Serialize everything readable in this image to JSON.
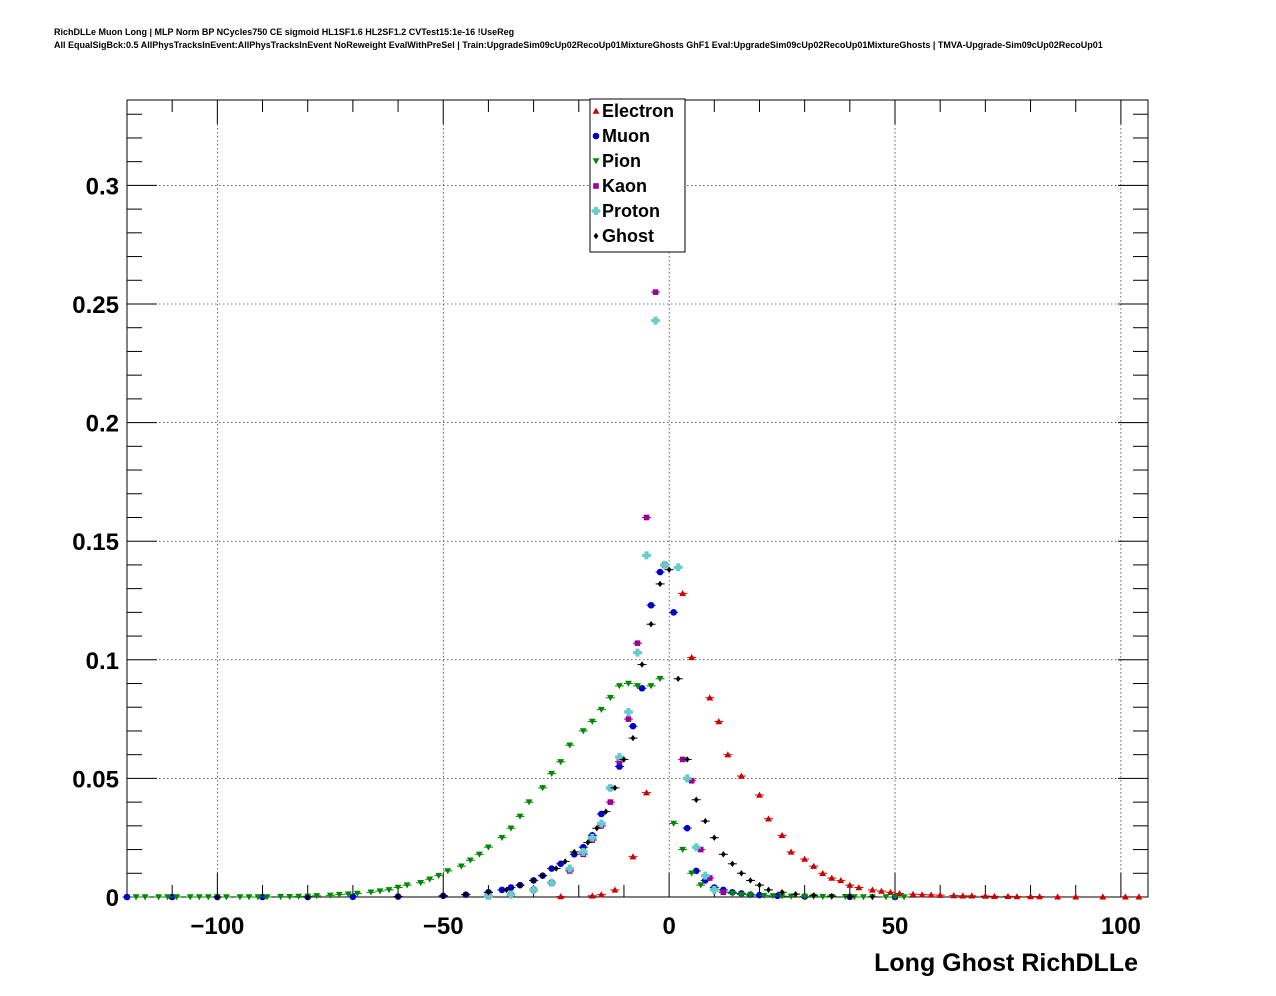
{
  "header": {
    "line1": "RichDLLe Muon Long | MLP Norm BP NCycles750 CE sigmoid HL1SF1.6 HL2SF1.2 CVTest15:1e-16 !UseReg",
    "line2": "All EqualSigBck:0.5 AllPhysTracksInEvent:AllPhysTracksInEvent NoReweight EvalWithPreSel | Train:UpgradeSim09cUp02RecoUp01MixtureGhosts GhF1 Eval:UpgradeSim09cUp02RecoUp01MixtureGhosts | TMVA-Upgrade-Sim09cUp02RecoUp01"
  },
  "chart_data": {
    "type": "scatter",
    "xlabel": "Long Ghost RichDLLe",
    "ylabel": "",
    "xlim": [
      -120,
      106
    ],
    "ylim": [
      0,
      0.336
    ],
    "grid": true,
    "legend_position": "top-center",
    "x_ticks": [
      {
        "value": -100,
        "label": "−100"
      },
      {
        "value": -50,
        "label": "−50"
      },
      {
        "value": 0,
        "label": "0"
      },
      {
        "value": 50,
        "label": "50"
      },
      {
        "value": 100,
        "label": "100"
      }
    ],
    "y_ticks": [
      {
        "value": 0,
        "label": "0"
      },
      {
        "value": 0.05,
        "label": "0.05"
      },
      {
        "value": 0.1,
        "label": "0.1"
      },
      {
        "value": 0.15,
        "label": "0.15"
      },
      {
        "value": 0.2,
        "label": "0.2"
      },
      {
        "value": 0.25,
        "label": "0.25"
      },
      {
        "value": 0.3,
        "label": "0.3"
      }
    ],
    "series": [
      {
        "name": "Electron",
        "marker": "triangle-up",
        "color": "#cc0000",
        "x": [
          -24,
          -17,
          -15,
          -12,
          -8,
          -5,
          3,
          5,
          9,
          11,
          13,
          16,
          20,
          22,
          25,
          27,
          30,
          32,
          34,
          36,
          38,
          40,
          42,
          45,
          47,
          49,
          51,
          54,
          56,
          58,
          60,
          63,
          65,
          67,
          70,
          72,
          75,
          77,
          80,
          82,
          86,
          90,
          96,
          101,
          104
        ],
        "y": [
          0.0002,
          0.0005,
          0.001,
          0.003,
          0.017,
          0.044,
          0.128,
          0.101,
          0.084,
          0.074,
          0.06,
          0.051,
          0.043,
          0.033,
          0.026,
          0.019,
          0.016,
          0.013,
          0.01,
          0.008,
          0.007,
          0.005,
          0.004,
          0.003,
          0.0025,
          0.002,
          0.0015,
          0.0012,
          0.001,
          0.0009,
          0.0008,
          0.0006,
          0.0005,
          0.0005,
          0.0004,
          0.0003,
          0.0003,
          0.0002,
          0.0002,
          0.0002,
          0.0001,
          0.0001,
          0.0001,
          0.0001,
          0.0001
        ]
      },
      {
        "name": "Muon",
        "marker": "circle",
        "color": "#0000cc",
        "x": [
          -120,
          -110,
          -100,
          -90,
          -80,
          -70,
          -60,
          -50,
          -45,
          -40,
          -37,
          -35,
          -33,
          -30,
          -28,
          -26,
          -24,
          -21,
          -19,
          -17,
          -15,
          -13,
          -11,
          -8,
          -6,
          -4,
          -2,
          1,
          4,
          6,
          8,
          10,
          12,
          14,
          16,
          18,
          20,
          24,
          30,
          40,
          50
        ],
        "y": [
          0,
          0,
          0,
          0,
          0,
          0.0001,
          0.0002,
          0.0005,
          0.001,
          0.002,
          0.003,
          0.004,
          0.005,
          0.007,
          0.009,
          0.012,
          0.014,
          0.018,
          0.021,
          0.026,
          0.035,
          0.046,
          0.055,
          0.072,
          0.088,
          0.123,
          0.137,
          0.12,
          0.029,
          0.011,
          0.007,
          0.004,
          0.003,
          0.002,
          0.0015,
          0.001,
          0.0008,
          0.0005,
          0.0002,
          0.0001,
          0
        ]
      },
      {
        "name": "Pion",
        "marker": "triangle-down",
        "color": "#008800",
        "x": [
          -118,
          -116,
          -113,
          -111,
          -109,
          -106,
          -104,
          -102,
          -100,
          -98,
          -95,
          -93,
          -91,
          -89,
          -86,
          -84,
          -82,
          -80,
          -78,
          -75,
          -73,
          -71,
          -69,
          -66,
          -64,
          -62,
          -60,
          -58,
          -55,
          -53,
          -51,
          -49,
          -46,
          -44,
          -42,
          -40,
          -37,
          -35,
          -33,
          -31,
          -28,
          -26,
          -24,
          -22,
          -19,
          -17,
          -15,
          -13,
          -11,
          -9,
          -7,
          -4,
          -2,
          1,
          3,
          5,
          7,
          10,
          12,
          14,
          16,
          18,
          21,
          23,
          25,
          27,
          30,
          32,
          34,
          36,
          39,
          41,
          43,
          45,
          48,
          50,
          52
        ],
        "y": [
          0,
          0,
          0,
          0,
          0,
          0,
          0,
          0,
          0,
          0,
          0,
          0,
          0,
          0,
          0.0001,
          0.0001,
          0.0002,
          0.0003,
          0.0005,
          0.0007,
          0.001,
          0.0012,
          0.0015,
          0.002,
          0.0025,
          0.003,
          0.004,
          0.005,
          0.006,
          0.0075,
          0.009,
          0.011,
          0.013,
          0.0155,
          0.018,
          0.021,
          0.025,
          0.029,
          0.034,
          0.04,
          0.046,
          0.052,
          0.057,
          0.064,
          0.07,
          0.074,
          0.079,
          0.084,
          0.089,
          0.09,
          0.089,
          0.089,
          0.092,
          0.031,
          0.02,
          0.01,
          0.005,
          0.003,
          0.002,
          0.0015,
          0.001,
          0.0008,
          0.0006,
          0.0005,
          0.0004,
          0.0003,
          0.0002,
          0.0002,
          0.0001,
          0.0001,
          0.0001,
          0,
          0,
          0,
          0,
          0,
          0
        ]
      },
      {
        "name": "Kaon",
        "marker": "square",
        "color": "#990099",
        "x": [
          -40,
          -35,
          -30,
          -26,
          -22,
          -19,
          -17,
          -15,
          -13,
          -11,
          -9,
          -7,
          -5,
          -3,
          -1,
          3,
          5,
          7,
          9,
          12
        ],
        "y": [
          0.0005,
          0.001,
          0.003,
          0.006,
          0.011,
          0.018,
          0.024,
          0.03,
          0.04,
          0.057,
          0.075,
          0.107,
          0.16,
          0.255,
          0.14,
          0.058,
          0.049,
          0.02,
          0.008,
          0.002
        ]
      },
      {
        "name": "Proton",
        "marker": "plus",
        "color": "#66cccc",
        "x": [
          -40,
          -35,
          -30,
          -26,
          -22,
          -19,
          -17,
          -15,
          -13,
          -11,
          -9,
          -7,
          -5,
          -3,
          -1,
          2,
          4,
          6,
          8,
          10
        ],
        "y": [
          0.0005,
          0.001,
          0.003,
          0.006,
          0.012,
          0.019,
          0.025,
          0.031,
          0.046,
          0.059,
          0.078,
          0.103,
          0.144,
          0.243,
          0.14,
          0.139,
          0.05,
          0.021,
          0.009,
          0.003
        ]
      },
      {
        "name": "Ghost",
        "marker": "diamond",
        "color": "#000000",
        "x": [
          -100,
          -80,
          -60,
          -50,
          -45,
          -40,
          -36,
          -33,
          -30,
          -28,
          -25,
          -23,
          -21,
          -18,
          -16,
          -14,
          -12,
          -10,
          -8,
          -6,
          -4,
          -2,
          0,
          2,
          4,
          6,
          8,
          10,
          12,
          14,
          16,
          18,
          20,
          22,
          25,
          28,
          32,
          36,
          40,
          45
        ],
        "y": [
          0,
          0,
          0.0002,
          0.0005,
          0.001,
          0.002,
          0.003,
          0.005,
          0.007,
          0.009,
          0.012,
          0.015,
          0.019,
          0.023,
          0.029,
          0.036,
          0.046,
          0.058,
          0.067,
          0.098,
          0.115,
          0.132,
          0.138,
          0.092,
          0.058,
          0.041,
          0.032,
          0.025,
          0.018,
          0.014,
          0.01,
          0.007,
          0.005,
          0.003,
          0.002,
          0.0012,
          0.0007,
          0.0004,
          0.0002,
          0.0001
        ]
      }
    ]
  }
}
